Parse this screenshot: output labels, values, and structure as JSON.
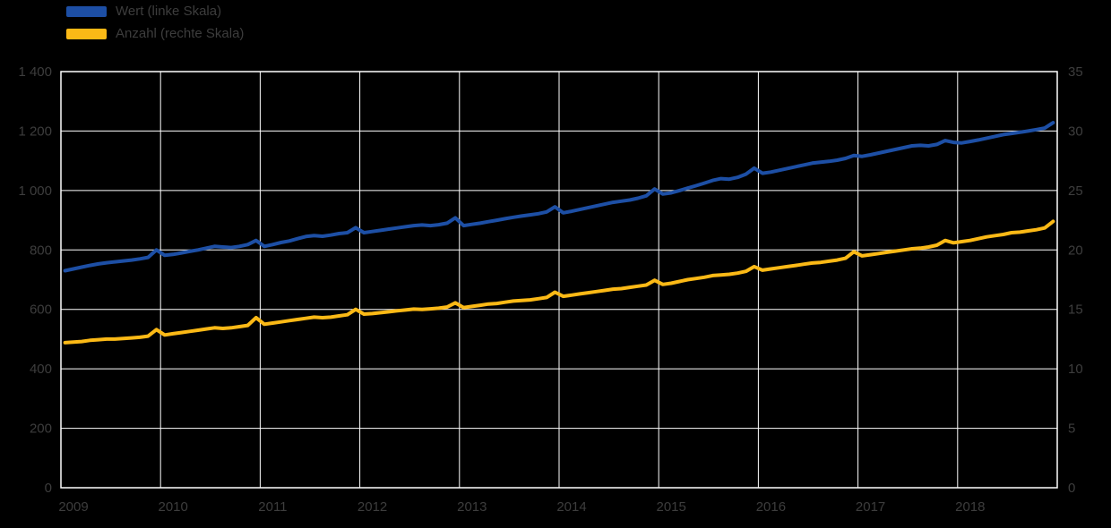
{
  "chart_data": {
    "type": "line",
    "title": "",
    "legend_position": "top-left",
    "grid": true,
    "background_color": "#000000",
    "gridline_color": "#ffffff",
    "text_color": "#3d3d3d",
    "x_label": "",
    "x_tick_labels": [
      "2009",
      "2010",
      "2011",
      "2012",
      "2013",
      "2014",
      "2015",
      "2016",
      "2017",
      "2018"
    ],
    "x_range_years": [
      2009,
      2019
    ],
    "points_per_year": 12,
    "left_axis": {
      "min": 0,
      "max": 1400,
      "step": 200,
      "tick_labels": [
        "0",
        "200",
        "400",
        "600",
        "800",
        "1 000",
        "1 200",
        "1 400"
      ]
    },
    "right_axis": {
      "min": 0,
      "max": 35,
      "step": 5,
      "tick_labels": [
        "0",
        "5",
        "10",
        "15",
        "20",
        "25",
        "30",
        "35"
      ]
    },
    "series": [
      {
        "name": "Wert (linke Skala)",
        "axis": "left",
        "color": "#1d4fa5",
        "values": [
          730,
          736,
          742,
          748,
          753,
          757,
          760,
          763,
          766,
          770,
          775,
          800,
          782,
          785,
          790,
          795,
          800,
          806,
          812,
          810,
          808,
          812,
          818,
          832,
          812,
          818,
          825,
          830,
          838,
          845,
          848,
          846,
          850,
          855,
          858,
          875,
          858,
          862,
          866,
          870,
          874,
          878,
          882,
          884,
          882,
          885,
          890,
          908,
          882,
          886,
          890,
          895,
          900,
          905,
          910,
          914,
          918,
          922,
          928,
          945,
          925,
          930,
          936,
          942,
          948,
          954,
          960,
          964,
          968,
          974,
          982,
          1005,
          988,
          992,
          1000,
          1008,
          1016,
          1025,
          1034,
          1040,
          1038,
          1044,
          1055,
          1075,
          1058,
          1062,
          1068,
          1074,
          1080,
          1086,
          1092,
          1095,
          1098,
          1102,
          1108,
          1118,
          1115,
          1120,
          1126,
          1132,
          1138,
          1144,
          1150,
          1152,
          1150,
          1155,
          1168,
          1162,
          1160,
          1165,
          1170,
          1176,
          1182,
          1188,
          1192,
          1196,
          1200,
          1205,
          1210,
          1228
        ]
      },
      {
        "name": "Anzahl (rechte Skala)",
        "axis": "right",
        "color": "#fbb916",
        "values": [
          12.2,
          12.25,
          12.3,
          12.4,
          12.45,
          12.5,
          12.5,
          12.55,
          12.6,
          12.65,
          12.75,
          13.3,
          12.85,
          12.95,
          13.05,
          13.15,
          13.25,
          13.35,
          13.45,
          13.4,
          13.45,
          13.55,
          13.65,
          14.3,
          13.75,
          13.85,
          13.95,
          14.05,
          14.15,
          14.25,
          14.35,
          14.3,
          14.35,
          14.45,
          14.55,
          15.0,
          14.6,
          14.65,
          14.72,
          14.8,
          14.88,
          14.95,
          15.02,
          15.0,
          15.05,
          15.1,
          15.2,
          15.55,
          15.15,
          15.25,
          15.35,
          15.45,
          15.5,
          15.6,
          15.7,
          15.75,
          15.8,
          15.9,
          16.0,
          16.45,
          16.1,
          16.2,
          16.3,
          16.4,
          16.5,
          16.6,
          16.7,
          16.75,
          16.85,
          16.95,
          17.05,
          17.45,
          17.1,
          17.2,
          17.35,
          17.5,
          17.6,
          17.7,
          17.85,
          17.9,
          17.95,
          18.05,
          18.2,
          18.6,
          18.3,
          18.4,
          18.5,
          18.6,
          18.7,
          18.8,
          18.9,
          18.95,
          19.05,
          19.15,
          19.3,
          19.85,
          19.5,
          19.6,
          19.7,
          19.8,
          19.9,
          20.0,
          20.1,
          20.15,
          20.25,
          20.4,
          20.8,
          20.6,
          20.7,
          20.8,
          20.95,
          21.1,
          21.2,
          21.3,
          21.45,
          21.5,
          21.6,
          21.7,
          21.85,
          22.4
        ]
      }
    ]
  },
  "legend": {
    "items": [
      {
        "label": "Wert (linke Skala)",
        "color": "#1d4fa5"
      },
      {
        "label": "Anzahl (rechte Skala)",
        "color": "#fbb916"
      }
    ]
  }
}
